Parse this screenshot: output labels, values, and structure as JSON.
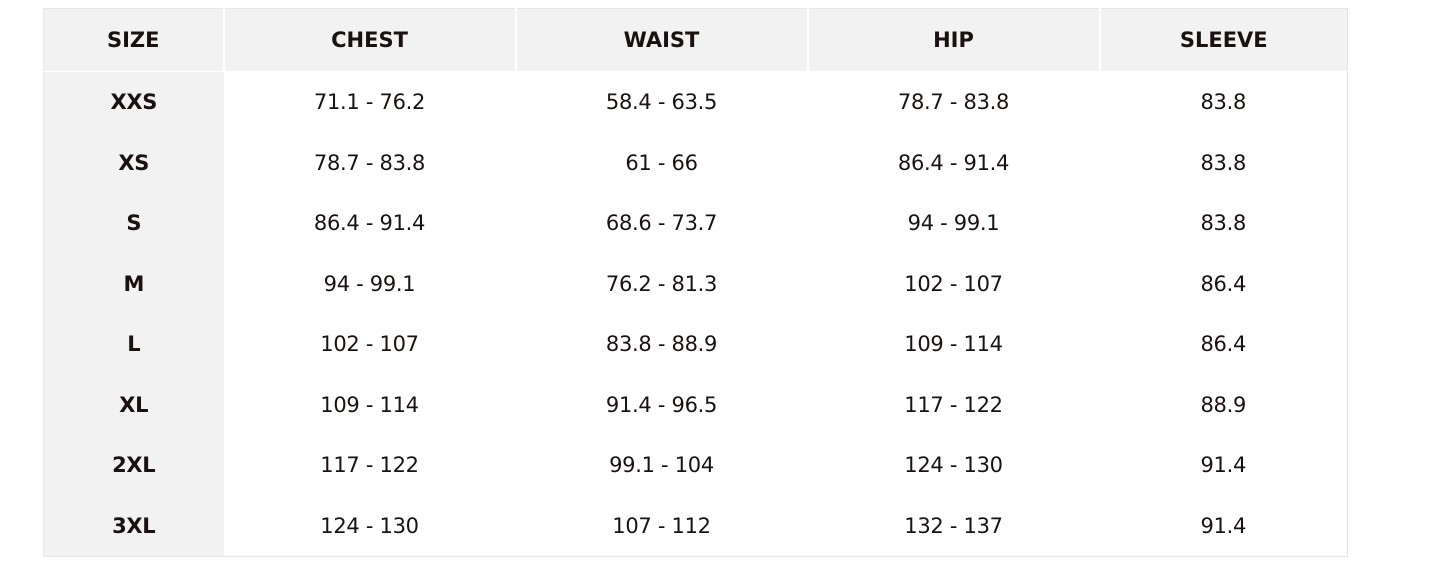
{
  "table": {
    "headers": [
      "SIZE",
      "CHEST",
      "WAIST",
      "HIP",
      "SLEEVE"
    ],
    "rows": [
      [
        "XXS",
        "71.1 - 76.2",
        "58.4 - 63.5",
        "78.7 - 83.8",
        "83.8"
      ],
      [
        "XS",
        "78.7 - 83.8",
        "61 - 66",
        "86.4 - 91.4",
        "83.8"
      ],
      [
        "S",
        "86.4 - 91.4",
        "68.6 - 73.7",
        "94 - 99.1",
        "83.8"
      ],
      [
        "M",
        "94 - 99.1",
        "76.2 - 81.3",
        "102 - 107",
        "86.4"
      ],
      [
        "L",
        "102 - 107",
        "83.8 - 88.9",
        "109 - 114",
        "86.4"
      ],
      [
        "XL",
        "109 - 114",
        "91.4 - 96.5",
        "117 - 122",
        "88.9"
      ],
      [
        "2XL",
        "117 - 122",
        "99.1 - 104",
        "124 - 130",
        "91.4"
      ],
      [
        "3XL",
        "124 - 130",
        "107 - 112",
        "132 - 137",
        "91.4"
      ]
    ]
  },
  "colors": {
    "header_bg": "#f2f2f2",
    "text": "#1a1210",
    "border": "#e6e6e6"
  }
}
